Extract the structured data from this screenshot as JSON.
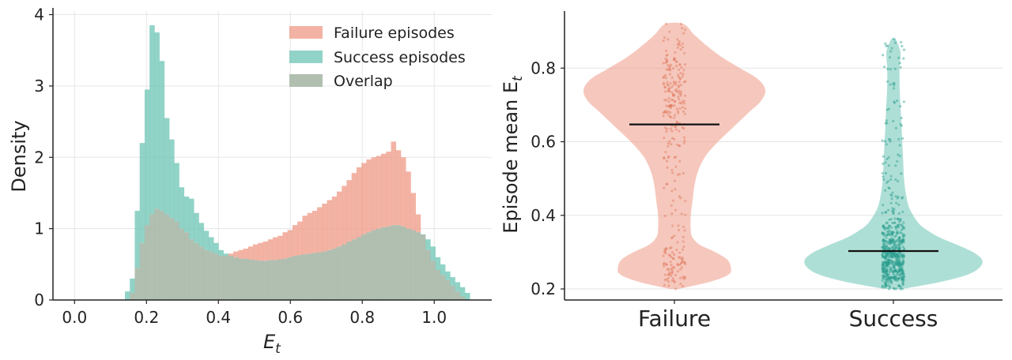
{
  "colors": {
    "failure": "#ef9a86",
    "success": "#6cc4b4",
    "overlap": "#a8b8a8",
    "failure_points": "#e0775e",
    "success_points": "#2a9d8f",
    "median": "#111111",
    "grid": "#e6e6e6",
    "axis": "#222222"
  },
  "chart_data": [
    {
      "type": "histogram",
      "xlabel": "E",
      "xlabel_sub": "t",
      "ylabel": "Density",
      "xlim": [
        -0.06,
        1.16
      ],
      "ylim": [
        0,
        4.05
      ],
      "xticks": [
        0.0,
        0.2,
        0.4,
        0.6,
        0.8,
        1.0
      ],
      "xtick_labels": [
        "0.0",
        "0.2",
        "0.4",
        "0.6",
        "0.8",
        "1.0"
      ],
      "yticks": [
        0,
        1,
        2,
        3,
        4
      ],
      "ytick_labels": [
        "0",
        "1",
        "2",
        "3",
        "4"
      ],
      "grid": true,
      "legend_position": "top-right",
      "legend": [
        "Failure episodes",
        "Success episodes",
        "Overlap"
      ],
      "bin_start": 0.14,
      "bin_width": 0.0137,
      "series": [
        {
          "name": "Failure episodes",
          "values": [
            0.0,
            0.1,
            0.45,
            0.8,
            1.05,
            1.2,
            1.28,
            1.25,
            1.2,
            1.15,
            1.1,
            1.0,
            0.95,
            0.85,
            0.8,
            0.75,
            0.7,
            0.68,
            0.65,
            0.62,
            0.62,
            0.65,
            0.68,
            0.7,
            0.72,
            0.75,
            0.78,
            0.8,
            0.82,
            0.85,
            0.88,
            0.9,
            0.95,
            0.98,
            1.05,
            1.1,
            1.18,
            1.22,
            1.25,
            1.3,
            1.35,
            1.4,
            1.45,
            1.52,
            1.6,
            1.68,
            1.78,
            1.86,
            1.92,
            1.97,
            2.0,
            2.02,
            2.05,
            2.08,
            2.22,
            2.1,
            2.0,
            1.8,
            1.5,
            1.2,
            0.92,
            0.7,
            0.55,
            0.42,
            0.35,
            0.28,
            0.2,
            0.12,
            0.05,
            0.0
          ]
        },
        {
          "name": "Success episodes",
          "values": [
            0.12,
            0.3,
            1.25,
            2.2,
            2.95,
            3.85,
            3.75,
            3.35,
            2.55,
            2.25,
            1.92,
            1.58,
            1.45,
            1.42,
            1.22,
            1.08,
            0.97,
            0.88,
            0.8,
            0.7,
            0.65,
            0.62,
            0.6,
            0.58,
            0.58,
            0.57,
            0.56,
            0.55,
            0.55,
            0.56,
            0.56,
            0.57,
            0.58,
            0.6,
            0.62,
            0.63,
            0.64,
            0.65,
            0.66,
            0.67,
            0.68,
            0.7,
            0.72,
            0.75,
            0.78,
            0.82,
            0.85,
            0.88,
            0.92,
            0.95,
            0.98,
            1.0,
            1.02,
            1.03,
            1.05,
            1.05,
            1.03,
            1.0,
            0.98,
            0.95,
            0.92,
            0.85,
            0.75,
            0.6,
            0.5,
            0.4,
            0.32,
            0.25,
            0.18,
            0.1
          ]
        }
      ]
    },
    {
      "type": "violin",
      "ylabel": "Episode mean E",
      "ylabel_sub": "t",
      "categories": [
        "Failure",
        "Success"
      ],
      "ylim": [
        0.17,
        0.955
      ],
      "yticks": [
        0.2,
        0.4,
        0.6,
        0.8
      ],
      "ytick_labels": [
        "0.2",
        "0.4",
        "0.6",
        "0.8"
      ],
      "grid": true,
      "medians": [
        0.647,
        0.303
      ],
      "range": [
        [
          0.2,
          0.92
        ],
        [
          0.2,
          0.88
        ]
      ],
      "density_profiles": [
        [
          [
            0.2,
            0.05
          ],
          [
            0.22,
            0.4
          ],
          [
            0.24,
            0.6
          ],
          [
            0.26,
            0.62
          ],
          [
            0.28,
            0.58
          ],
          [
            0.3,
            0.45
          ],
          [
            0.32,
            0.28
          ],
          [
            0.34,
            0.2
          ],
          [
            0.36,
            0.18
          ],
          [
            0.4,
            0.18
          ],
          [
            0.44,
            0.2
          ],
          [
            0.48,
            0.22
          ],
          [
            0.52,
            0.26
          ],
          [
            0.56,
            0.34
          ],
          [
            0.6,
            0.48
          ],
          [
            0.64,
            0.65
          ],
          [
            0.68,
            0.82
          ],
          [
            0.71,
            0.95
          ],
          [
            0.74,
            1.0
          ],
          [
            0.77,
            0.92
          ],
          [
            0.8,
            0.72
          ],
          [
            0.83,
            0.52
          ],
          [
            0.86,
            0.36
          ],
          [
            0.89,
            0.22
          ],
          [
            0.92,
            0.1
          ]
        ],
        [
          [
            0.2,
            0.1
          ],
          [
            0.22,
            0.55
          ],
          [
            0.24,
            0.85
          ],
          [
            0.26,
            0.98
          ],
          [
            0.28,
            1.0
          ],
          [
            0.3,
            0.9
          ],
          [
            0.32,
            0.72
          ],
          [
            0.34,
            0.52
          ],
          [
            0.36,
            0.38
          ],
          [
            0.38,
            0.28
          ],
          [
            0.42,
            0.18
          ],
          [
            0.46,
            0.14
          ],
          [
            0.5,
            0.12
          ],
          [
            0.55,
            0.11
          ],
          [
            0.6,
            0.1
          ],
          [
            0.65,
            0.09
          ],
          [
            0.7,
            0.08
          ],
          [
            0.75,
            0.07
          ],
          [
            0.8,
            0.07
          ],
          [
            0.84,
            0.08
          ],
          [
            0.86,
            0.06
          ],
          [
            0.88,
            0.02
          ]
        ]
      ],
      "points_count": [
        300,
        650
      ]
    }
  ]
}
